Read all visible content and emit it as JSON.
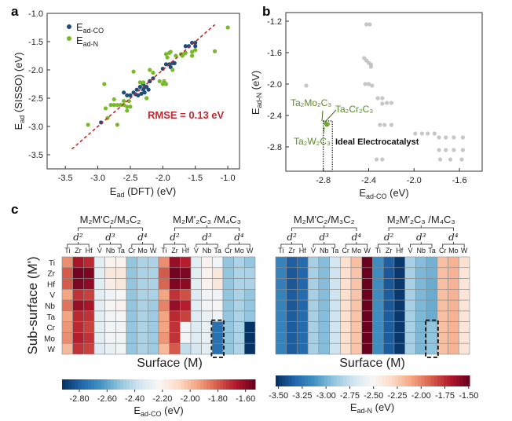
{
  "chart_data": [
    {
      "panel": "a",
      "type": "scatter",
      "xlabel": {
        "main": "E",
        "sub": "ad",
        "rest": " (DFT) (eV)"
      },
      "ylabel": {
        "main": "E",
        "sub": "ad",
        "rest": " (SISSO) (eV)"
      },
      "xlim": [
        -3.78,
        -0.82
      ],
      "ylim": [
        -3.75,
        -1.0
      ],
      "xticks": [
        "-3.5",
        "-3.0",
        "-2.5",
        "-2.0",
        "-1.5",
        "-1.0"
      ],
      "yticks": [
        "-1.0",
        "-1.5",
        "-2.0",
        "-2.5",
        "-3.0",
        "-3.5"
      ],
      "annotation": "RMSE = 0.13 eV",
      "legend_position": "top-left",
      "parity_line": [
        [
          -3.4,
          -3.4
        ],
        [
          -1.2,
          -1.2
        ]
      ],
      "series": [
        {
          "name": {
            "main": "E",
            "sub": "ad-CO"
          },
          "color": "#1f4e79",
          "points": [
            [
              -2.95,
              -2.93
            ],
            [
              -2.6,
              -2.4
            ],
            [
              -2.55,
              -2.45
            ],
            [
              -2.5,
              -2.45
            ],
            [
              -2.45,
              -2.4
            ],
            [
              -2.42,
              -2.43
            ],
            [
              -2.4,
              -2.35
            ],
            [
              -2.38,
              -2.45
            ],
            [
              -2.35,
              -2.3
            ],
            [
              -2.33,
              -2.42
            ],
            [
              -2.3,
              -2.35
            ],
            [
              -2.3,
              -2.25
            ],
            [
              -2.28,
              -2.4
            ],
            [
              -2.27,
              -2.3
            ],
            [
              -2.25,
              -2.3
            ],
            [
              -2.22,
              -2.35
            ],
            [
              -2.2,
              -2.2
            ],
            [
              -2.15,
              -2.15
            ],
            [
              -2.0,
              -1.98
            ],
            [
              -1.95,
              -1.9
            ],
            [
              -1.9,
              -1.9
            ],
            [
              -1.88,
              -1.95
            ],
            [
              -1.85,
              -1.88
            ],
            [
              -1.82,
              -1.88
            ],
            [
              -1.65,
              -1.58
            ],
            [
              -1.6,
              -1.58
            ],
            [
              -1.55,
              -1.52
            ],
            [
              -1.5,
              -1.52
            ],
            [
              -1.5,
              -1.58
            ]
          ]
        },
        {
          "name": {
            "main": "E",
            "sub": "ad-N"
          },
          "color": "#7ab929",
          "points": [
            [
              -3.15,
              -2.97
            ],
            [
              -2.9,
              -2.25
            ],
            [
              -2.88,
              -2.68
            ],
            [
              -2.85,
              -2.85
            ],
            [
              -2.8,
              -2.62
            ],
            [
              -2.75,
              -2.52
            ],
            [
              -2.75,
              -2.62
            ],
            [
              -2.7,
              -2.97
            ],
            [
              -2.7,
              -2.62
            ],
            [
              -2.65,
              -2.62
            ],
            [
              -2.6,
              -2.62
            ],
            [
              -2.6,
              -2.55
            ],
            [
              -2.55,
              -2.65
            ],
            [
              -2.55,
              -2.72
            ],
            [
              -2.52,
              -2.55
            ],
            [
              -2.5,
              -2.65
            ],
            [
              -2.45,
              -2.03
            ],
            [
              -2.35,
              -2.22
            ],
            [
              -2.3,
              -2.22
            ],
            [
              -2.25,
              -2.5
            ],
            [
              -2.2,
              -2.0
            ],
            [
              -2.15,
              -2.05
            ],
            [
              -2.05,
              -2.2
            ],
            [
              -2.0,
              -2.25
            ],
            [
              -1.98,
              -2.2
            ],
            [
              -1.95,
              -2.25
            ],
            [
              -1.95,
              -1.72
            ],
            [
              -1.93,
              -1.78
            ],
            [
              -1.9,
              -1.7
            ],
            [
              -1.88,
              -1.68
            ],
            [
              -1.85,
              -2.0
            ],
            [
              -1.8,
              -1.75
            ],
            [
              -1.72,
              -1.72
            ],
            [
              -1.7,
              -1.75
            ],
            [
              -1.68,
              -1.72
            ],
            [
              -1.65,
              -1.7
            ],
            [
              -1.55,
              -1.68
            ],
            [
              -1.55,
              -1.75
            ],
            [
              -1.5,
              -1.65
            ],
            [
              -1.2,
              -1.67
            ],
            [
              -1.0,
              -1.25
            ]
          ]
        }
      ]
    },
    {
      "panel": "b",
      "type": "scatter",
      "xlabel": {
        "main": "E",
        "sub": "ad-CO",
        "rest": " (eV)"
      },
      "ylabel": {
        "main": "E",
        "sub": "ad-N",
        "rest": " (eV)"
      },
      "xlim": [
        -3.13,
        -1.4
      ],
      "ylim": [
        -3.11,
        -1.09
      ],
      "xticks": [
        "-2.8",
        "-2.4",
        "-2.0",
        "-1.6"
      ],
      "yticks": [
        "-1.2",
        "-1.6",
        "-2.0",
        "-2.4",
        "-2.8"
      ],
      "region_label": "Ideal Electrocatalyst",
      "region": {
        "x": [
          -2.8,
          -2.72
        ],
        "y": [
          -3.11,
          -2.47
        ]
      },
      "highlight_labels": [
        "Ta₂Mo₂C₃",
        "Ta₂Cr₂C₃",
        "Ta₂W₂C₃"
      ],
      "series": [
        {
          "color": "#bdbdbd",
          "points": [
            [
              -2.95,
              -2.02
            ],
            [
              -2.42,
              -1.24
            ],
            [
              -2.39,
              -1.24
            ],
            [
              -2.44,
              -1.67
            ],
            [
              -2.42,
              -1.7
            ],
            [
              -2.4,
              -1.73
            ],
            [
              -2.38,
              -1.75
            ],
            [
              -2.38,
              -1.78
            ],
            [
              -2.43,
              -2.0
            ],
            [
              -2.4,
              -2.0
            ],
            [
              -2.37,
              -2.02
            ],
            [
              -2.32,
              -2.18
            ],
            [
              -2.28,
              -2.18
            ],
            [
              -2.28,
              -2.25
            ],
            [
              -2.24,
              -2.24
            ],
            [
              -2.2,
              -2.24
            ],
            [
              -2.3,
              -2.52
            ],
            [
              -2.26,
              -2.52
            ],
            [
              -2.2,
              -2.52
            ],
            [
              -1.99,
              -2.63
            ],
            [
              -1.93,
              -2.63
            ],
            [
              -1.88,
              -2.63
            ],
            [
              -1.82,
              -2.63
            ],
            [
              -1.78,
              -2.68
            ],
            [
              -1.72,
              -2.68
            ],
            [
              -1.65,
              -2.68
            ],
            [
              -1.57,
              -2.68
            ],
            [
              -1.78,
              -2.84
            ],
            [
              -1.72,
              -2.84
            ],
            [
              -1.65,
              -2.84
            ],
            [
              -1.57,
              -2.84
            ],
            [
              -2.33,
              -2.96
            ],
            [
              -2.28,
              -2.96
            ],
            [
              -1.77,
              -2.96
            ],
            [
              -1.68,
              -2.96
            ],
            [
              -1.58,
              -2.96
            ]
          ]
        },
        {
          "color": "#6aa12a",
          "points": [
            [
              -2.78,
              -2.5
            ],
            [
              -2.76,
              -2.51
            ],
            [
              -2.77,
              -2.52
            ]
          ]
        }
      ]
    },
    {
      "panel": "c",
      "type": "heatmap",
      "rows": [
        "Ti",
        "Zr",
        "Hf",
        "V",
        "Nb",
        "Ta",
        "Cr",
        "Mo",
        "W"
      ],
      "columns": [
        "Ti",
        "Zr",
        "Hf",
        "V",
        "Nb",
        "Ta",
        "Cr",
        "Mo",
        "W",
        "Ti",
        "Zr",
        "Hf",
        "V",
        "Nb",
        "Ta",
        "Cr",
        "Mo",
        "W"
      ],
      "groups": [
        "M₂M'C₂/M₃C₂",
        "M₂M'₂C₃ /M₄C₃"
      ],
      "subgroups": [
        "d²",
        "d³",
        "d⁴"
      ],
      "ylabel": "Sub-surface (M')",
      "xlabel": "Surface (M)",
      "maps": [
        {
          "colorbar_label": {
            "main": "E",
            "sub": "ad-CO",
            "rest": " (eV)"
          },
          "range": [
            -2.925,
            -1.53
          ],
          "ticks": [
            "-2.80",
            "-2.60",
            "-2.40",
            "-2.20",
            "-2.00",
            "-1.80",
            "-1.60"
          ],
          "values": [
            [
              -1.9,
              -1.65,
              -1.7,
              -2.3,
              -2.2,
              -2.2,
              -2.5,
              -2.45,
              -2.45,
              -1.9,
              -1.62,
              -1.68,
              -2.3,
              -2.2,
              -2.25,
              -2.5,
              -2.45,
              -2.5
            ],
            [
              -1.8,
              -1.55,
              -1.57,
              -2.3,
              -2.15,
              -2.15,
              -2.5,
              -2.45,
              -2.45,
              -1.8,
              -1.55,
              -1.57,
              -2.3,
              -2.2,
              -2.15,
              -2.5,
              -2.45,
              -2.45
            ],
            [
              -1.8,
              -1.57,
              -1.6,
              -2.3,
              -2.18,
              -2.15,
              -2.5,
              -2.45,
              -2.45,
              -1.82,
              -1.57,
              -1.6,
              -2.3,
              -2.2,
              -2.15,
              -2.5,
              -2.45,
              -2.45
            ],
            [
              -1.95,
              -1.72,
              -1.75,
              -2.3,
              -2.25,
              -2.22,
              -2.5,
              -2.45,
              -2.45,
              -1.95,
              -1.72,
              -1.78,
              -2.32,
              -2.25,
              -2.25,
              -2.5,
              -2.45,
              -2.5
            ],
            [
              -1.85,
              -1.62,
              -1.65,
              -2.3,
              -2.22,
              -2.2,
              -2.5,
              -2.45,
              -2.48,
              -1.88,
              -1.62,
              -1.68,
              -2.3,
              -2.25,
              -2.22,
              -2.5,
              -2.45,
              -2.5
            ],
            [
              -1.95,
              -1.7,
              -1.72,
              -2.3,
              -2.25,
              -2.22,
              -2.5,
              -2.45,
              -2.48,
              -1.95,
              -1.7,
              -1.75,
              -2.32,
              -2.28,
              -2.25,
              -2.5,
              -2.45,
              -2.5
            ],
            [
              -1.92,
              -1.7,
              -1.75,
              -2.3,
              -2.25,
              -2.25,
              -2.5,
              -2.45,
              -2.48,
              -1.95,
              -1.72,
              -2.25,
              -2.32,
              -2.28,
              -2.75,
              -2.5,
              -2.45,
              -2.92
            ],
            [
              -1.9,
              -1.68,
              -1.72,
              -2.3,
              -2.25,
              -2.25,
              -2.5,
              -2.45,
              -2.48,
              -1.92,
              -1.72,
              -2.25,
              -2.32,
              -2.28,
              -2.75,
              -2.5,
              -2.45,
              -2.92
            ],
            [
              -2.0,
              -1.72,
              -1.75,
              -2.32,
              -2.28,
              -2.25,
              -2.5,
              -2.45,
              -2.48,
              -2.0,
              -1.8,
              -2.4,
              -2.35,
              -2.3,
              -2.75,
              -2.5,
              -2.45,
              -2.92
            ]
          ]
        },
        {
          "colorbar_label": {
            "main": "E",
            "sub": "ad-N",
            "rest": " (eV)"
          },
          "range": [
            -3.53,
            -1.49
          ],
          "ticks": [
            "-3.50",
            "-3.25",
            "-3.00",
            "-2.75",
            "-2.50",
            "-2.25",
            "-2.00",
            "-1.75",
            "-1.50"
          ],
          "values": [
            [
              -3.2,
              -3.35,
              -3.3,
              -2.85,
              -2.95,
              -2.7,
              -2.35,
              -2.2,
              -1.5,
              -3.15,
              -3.35,
              -3.5,
              -2.85,
              -2.95,
              -3.0,
              -2.2,
              -2.15,
              -2.35
            ],
            [
              -3.2,
              -3.38,
              -3.32,
              -2.85,
              -2.95,
              -2.72,
              -2.35,
              -2.22,
              -1.5,
              -3.15,
              -3.38,
              -3.5,
              -2.85,
              -2.97,
              -3.0,
              -2.2,
              -2.15,
              -2.38
            ],
            [
              -3.22,
              -3.38,
              -3.32,
              -2.85,
              -2.95,
              -2.72,
              -2.35,
              -2.22,
              -1.5,
              -3.15,
              -3.38,
              -3.5,
              -2.85,
              -2.97,
              -3.02,
              -2.2,
              -2.15,
              -2.38
            ],
            [
              -3.2,
              -3.36,
              -3.3,
              -2.85,
              -2.95,
              -2.72,
              -2.35,
              -2.22,
              -1.5,
              -3.15,
              -3.36,
              -3.5,
              -2.85,
              -2.97,
              -3.02,
              -2.2,
              -2.15,
              -2.38
            ],
            [
              -3.2,
              -3.38,
              -3.32,
              -2.85,
              -2.95,
              -2.72,
              -2.35,
              -2.22,
              -1.5,
              -3.15,
              -3.38,
              -3.5,
              -2.85,
              -2.97,
              -3.02,
              -2.2,
              -2.15,
              -2.38
            ],
            [
              -3.2,
              -3.36,
              -3.3,
              -2.85,
              -2.95,
              -2.72,
              -2.35,
              -2.22,
              -1.5,
              -3.15,
              -3.36,
              -3.5,
              -2.85,
              -2.97,
              -3.02,
              -2.2,
              -2.15,
              -2.38
            ],
            [
              -3.2,
              -3.36,
              -3.3,
              -2.85,
              -2.95,
              -2.72,
              -2.35,
              -2.22,
              -1.5,
              -3.15,
              -3.36,
              -3.5,
              -2.85,
              -2.97,
              -2.92,
              -2.2,
              -2.15,
              -2.38
            ],
            [
              -3.2,
              -3.36,
              -3.3,
              -2.85,
              -2.95,
              -2.72,
              -2.35,
              -2.22,
              -1.5,
              -3.15,
              -3.36,
              -3.5,
              -2.85,
              -2.97,
              -2.92,
              -2.2,
              -2.15,
              -2.38
            ],
            [
              -3.2,
              -3.36,
              -3.3,
              -2.85,
              -2.95,
              -2.72,
              -2.35,
              -2.22,
              -1.5,
              -3.15,
              -3.36,
              -3.5,
              -2.85,
              -2.97,
              -2.92,
              -2.2,
              -2.15,
              -2.38
            ]
          ]
        }
      ],
      "highlight": "Ta surface / Cr, Mo, W sub-surface of M₂M'₂C₃",
      "colormap": [
        "#053061",
        "#2166ac",
        "#4393c3",
        "#92c5de",
        "#d1e5f0",
        "#f7f7f7",
        "#fddbc7",
        "#f4a582",
        "#d6604d",
        "#b2182b",
        "#67001f"
      ]
    }
  ],
  "panels": [
    "a",
    "b",
    "c"
  ]
}
